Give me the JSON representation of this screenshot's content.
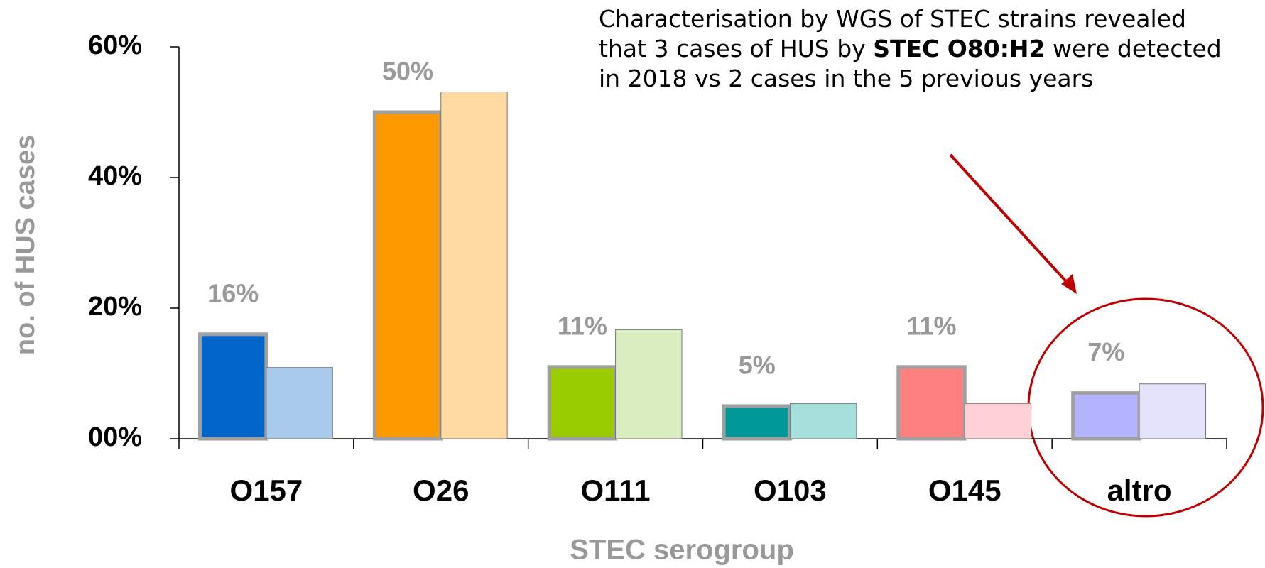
{
  "chart_data": {
    "type": "bar",
    "annotation": [
      "Characterisation by WGS of STEC strains revealed that 3 cases of HUS by ",
      "STEC O80:H2",
      " were detected in 2018 vs 2 cases in the 5 previous years"
    ],
    "y_label": "no. of HUS cases",
    "x_label": "STEC serogroup",
    "categories": [
      "O157",
      "O26",
      "O111",
      "O103",
      "O145",
      "altro"
    ],
    "series": [
      {
        "colors": [
          "#0066cc",
          "#ff9900",
          "#99cc00",
          "#009999",
          "#ff8080",
          "#b3b3ff"
        ],
        "values": [
          16,
          50,
          11,
          5,
          11,
          7
        ],
        "value_labels": [
          "16%",
          "50%",
          "11%",
          "5%",
          "11%",
          "7%"
        ]
      },
      {
        "colors": [
          "#a8c8ec",
          "#ffd9a0",
          "#d9edc0",
          "#a6e0dd",
          "#ffd1d6",
          "#e3e3fb"
        ],
        "values": [
          10.9,
          53.1,
          16.7,
          5.4,
          5.4,
          8.4
        ]
      }
    ],
    "ylim": [
      0,
      60
    ],
    "yticks": [
      {
        "value": 0,
        "label": "00%"
      },
      {
        "value": 20,
        "label": "20%"
      },
      {
        "value": 40,
        "label": "40%"
      },
      {
        "value": 60,
        "label": "60%"
      }
    ]
  }
}
